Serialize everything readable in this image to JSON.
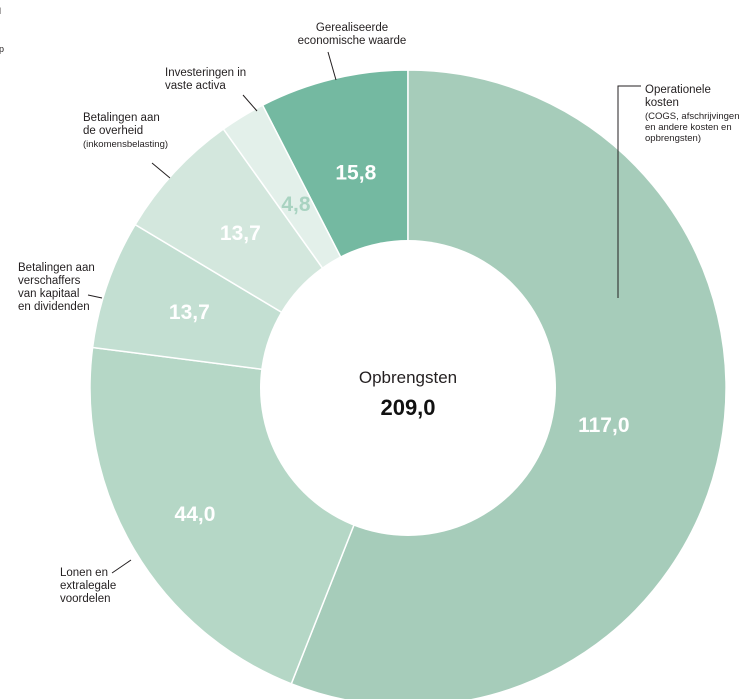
{
  "chart_data": {
    "type": "pie",
    "variant": "donut",
    "center": {
      "label": "Opbrengsten",
      "value": "209,0"
    },
    "slices": [
      {
        "key": "realized",
        "value": 15.8,
        "value_label": "15,8",
        "color": "#74b9a1",
        "value_color": "#ffffff",
        "label_lines": [
          "Gerealiseerde",
          "economische waarde"
        ],
        "sub_lines": []
      },
      {
        "key": "operational",
        "value": 117.0,
        "value_label": "117,0",
        "color": "#a6ccba",
        "value_color": "#ffffff",
        "label_lines": [
          "Operationele",
          "kosten"
        ],
        "sub_lines": [
          "(COGS, afschrijvingen",
          "en andere kosten en",
          "opbrengsten)"
        ]
      },
      {
        "key": "wages",
        "value": 44.0,
        "value_label": "44,0",
        "color": "#b5d7c6",
        "value_color": "#ffffff",
        "label_lines": [
          "Lonen en",
          "extralegale",
          "voordelen"
        ],
        "sub_lines": []
      },
      {
        "key": "capital",
        "value": 13.7,
        "value_label": "13,7",
        "color": "#c3dfd2",
        "value_color": "#ffffff",
        "label_lines": [
          "Betalingen aan",
          "verschaffers",
          "van kapitaal",
          "en dividenden"
        ],
        "sub_lines": []
      },
      {
        "key": "government",
        "value": 13.7,
        "value_label": "13,7",
        "color": "#d3e7dd",
        "value_color": "#ffffff",
        "label_lines": [
          "Betalingen aan",
          "de overheid"
        ],
        "sub_lines": [
          "(inkomensbelasting)"
        ]
      },
      {
        "key": "investments",
        "value": 4.8,
        "value_label": "4,8",
        "color": "#e3f0ea",
        "value_color": "#a9d3c1",
        "label_lines": [
          "Investeringen in",
          "vaste activa"
        ],
        "sub_lines": []
      }
    ],
    "edge_fragments": [
      "l",
      "p"
    ]
  }
}
